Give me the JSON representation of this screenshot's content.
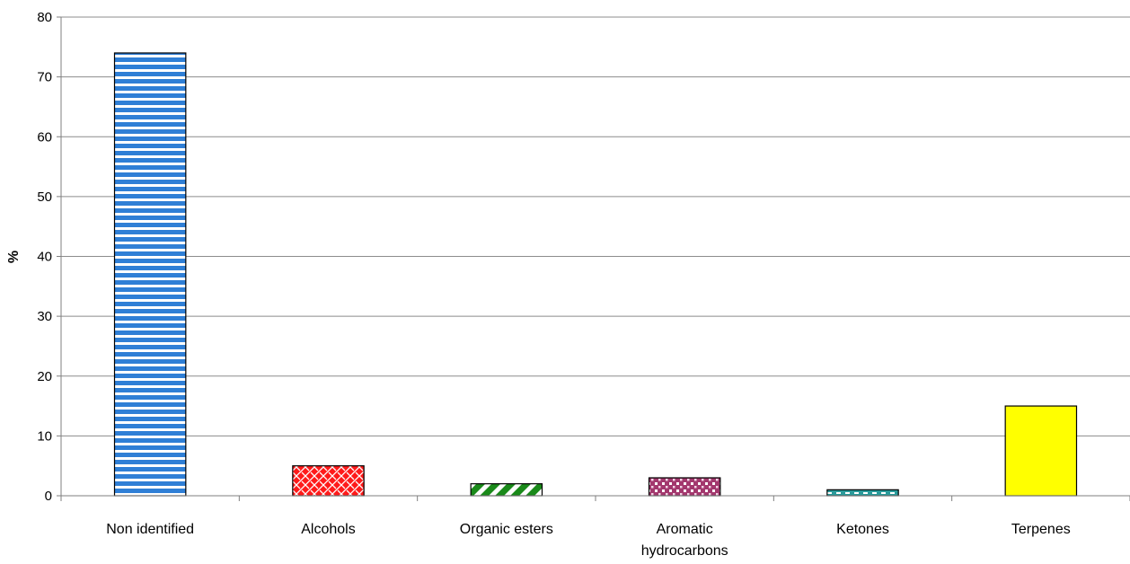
{
  "chart_data": {
    "type": "bar",
    "categories": [
      [
        "Non identified"
      ],
      [
        "Alcohols"
      ],
      [
        "Organic esters"
      ],
      [
        "Aromatic",
        "hydrocarbons"
      ],
      [
        "Ketones"
      ],
      [
        "Terpenes"
      ]
    ],
    "values": [
      74,
      5,
      2,
      3,
      1,
      15
    ],
    "ylabel": "%",
    "ylim": [
      0,
      80
    ],
    "yticks": [
      "0",
      "10",
      "20",
      "30",
      "40",
      "50",
      "60",
      "70",
      "80"
    ],
    "grid": true,
    "legend": "none",
    "bar_colors": [
      "#2f7fd6",
      "#ff1a1a",
      "#1a8a1a",
      "#a3386e",
      "#2a9a9a",
      "#ffff00"
    ],
    "bar_patterns": [
      "horizontal-stripes",
      "weave",
      "diagonal-stripes",
      "dots",
      "dashes",
      "solid"
    ]
  }
}
